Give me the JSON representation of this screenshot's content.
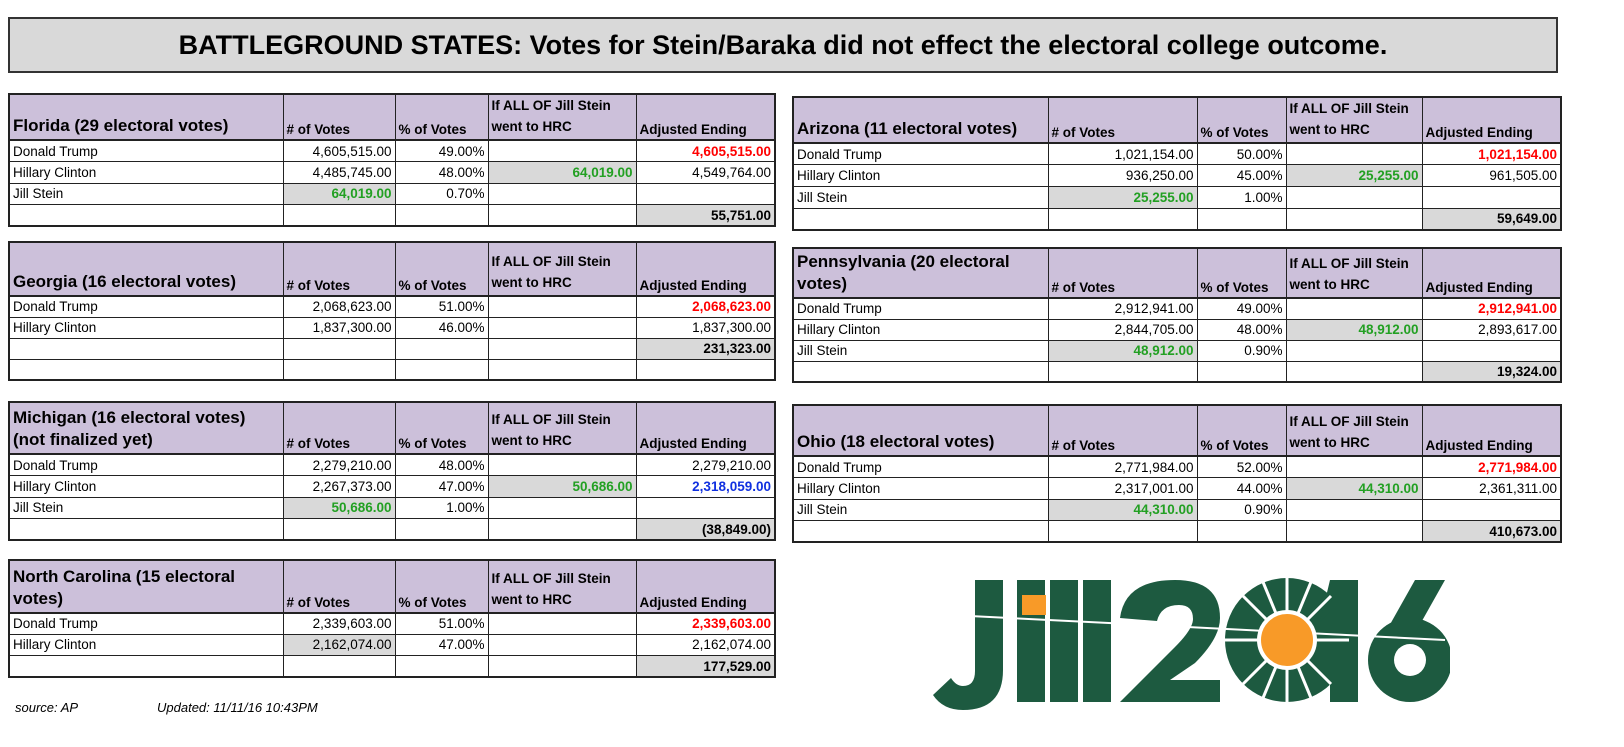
{
  "title": "BATTLEGROUND STATES: Votes for Stein/Baraka did not effect the electoral college outcome.",
  "headers": {
    "votes": "# of Votes",
    "pct": "% of Votes",
    "if": "If ALL OF Jill Stein went to HRC",
    "adjusted": "Adjusted Ending"
  },
  "colors": {
    "header": "#ccc0da",
    "shade": "#d9d9d9",
    "red": "#ff0000",
    "green": "#22a022",
    "blue": "#1030e0"
  },
  "tables": [
    {
      "id": "florida",
      "state": "Florida (29 electoral votes)",
      "rows": [
        [
          {
            "t": "Donald Trump"
          },
          {
            "t": "4,605,515.00"
          },
          {
            "t": "49.00%"
          },
          {
            "t": ""
          },
          {
            "t": "4,605,515.00",
            "c": "red",
            "b": 1
          }
        ],
        [
          {
            "t": "Hillary Clinton"
          },
          {
            "t": "4,485,745.00"
          },
          {
            "t": "48.00%"
          },
          {
            "t": "64,019.00",
            "c": "green",
            "b": 1,
            "s": 1
          },
          {
            "t": "4,549,764.00"
          }
        ],
        [
          {
            "t": "Jill Stein"
          },
          {
            "t": "64,019.00",
            "c": "green",
            "b": 1,
            "s": 1
          },
          {
            "t": "0.70%"
          },
          {
            "t": ""
          },
          {
            "t": ""
          }
        ],
        [
          {
            "t": ""
          },
          {
            "t": ""
          },
          {
            "t": ""
          },
          {
            "t": ""
          },
          {
            "t": "55,751.00",
            "b": 1,
            "s": 1
          }
        ]
      ]
    },
    {
      "id": "georgia",
      "state": "Georgia (16 electoral votes)",
      "rows": [
        [
          {
            "t": "Donald Trump"
          },
          {
            "t": "2,068,623.00"
          },
          {
            "t": "51.00%"
          },
          {
            "t": ""
          },
          {
            "t": "2,068,623.00",
            "c": "red",
            "b": 1
          }
        ],
        [
          {
            "t": "Hillary Clinton"
          },
          {
            "t": "1,837,300.00"
          },
          {
            "t": "46.00%"
          },
          {
            "t": ""
          },
          {
            "t": "1,837,300.00"
          }
        ],
        [
          {
            "t": ""
          },
          {
            "t": ""
          },
          {
            "t": ""
          },
          {
            "t": ""
          },
          {
            "t": "231,323.00",
            "b": 1,
            "s": 1
          }
        ],
        [
          {
            "t": ""
          },
          {
            "t": ""
          },
          {
            "t": ""
          },
          {
            "t": ""
          },
          {
            "t": ""
          }
        ]
      ]
    },
    {
      "id": "michigan",
      "state": "Michigan (16 electoral votes) (not finalized yet)",
      "rows": [
        [
          {
            "t": "Donald Trump"
          },
          {
            "t": "2,279,210.00"
          },
          {
            "t": "48.00%"
          },
          {
            "t": ""
          },
          {
            "t": "2,279,210.00"
          }
        ],
        [
          {
            "t": "Hillary Clinton"
          },
          {
            "t": "2,267,373.00"
          },
          {
            "t": "47.00%"
          },
          {
            "t": "50,686.00",
            "c": "green",
            "b": 1,
            "s": 1
          },
          {
            "t": "2,318,059.00",
            "c": "blue",
            "b": 1
          }
        ],
        [
          {
            "t": "Jill Stein"
          },
          {
            "t": "50,686.00",
            "c": "green",
            "b": 1,
            "s": 1
          },
          {
            "t": "1.00%"
          },
          {
            "t": ""
          },
          {
            "t": ""
          }
        ],
        [
          {
            "t": ""
          },
          {
            "t": ""
          },
          {
            "t": ""
          },
          {
            "t": ""
          },
          {
            "t": "(38,849.00)",
            "b": 1,
            "s": 1
          }
        ]
      ]
    },
    {
      "id": "north-carolina",
      "state": "North Carolina (15 electoral votes)",
      "rows": [
        [
          {
            "t": "Donald Trump"
          },
          {
            "t": "2,339,603.00"
          },
          {
            "t": "51.00%"
          },
          {
            "t": ""
          },
          {
            "t": "2,339,603.00",
            "c": "red",
            "b": 1
          }
        ],
        [
          {
            "t": "Hillary Clinton"
          },
          {
            "t": "2,162,074.00",
            "s": 1
          },
          {
            "t": "47.00%"
          },
          {
            "t": ""
          },
          {
            "t": "2,162,074.00"
          }
        ],
        [
          {
            "t": ""
          },
          {
            "t": ""
          },
          {
            "t": ""
          },
          {
            "t": ""
          },
          {
            "t": "177,529.00",
            "b": 1,
            "s": 1
          }
        ]
      ]
    },
    {
      "id": "arizona",
      "state": "Arizona (11 electoral votes)",
      "rows": [
        [
          {
            "t": "Donald Trump"
          },
          {
            "t": "1,021,154.00"
          },
          {
            "t": "50.00%"
          },
          {
            "t": ""
          },
          {
            "t": "1,021,154.00",
            "c": "red",
            "b": 1
          }
        ],
        [
          {
            "t": "Hillary Clinton"
          },
          {
            "t": "936,250.00"
          },
          {
            "t": "45.00%"
          },
          {
            "t": "25,255.00",
            "c": "green",
            "b": 1,
            "s": 1
          },
          {
            "t": "961,505.00"
          }
        ],
        [
          {
            "t": "Jill Stein"
          },
          {
            "t": "25,255.00",
            "c": "green",
            "b": 1,
            "s": 1
          },
          {
            "t": "1.00%"
          },
          {
            "t": ""
          },
          {
            "t": ""
          }
        ],
        [
          {
            "t": ""
          },
          {
            "t": ""
          },
          {
            "t": ""
          },
          {
            "t": ""
          },
          {
            "t": "59,649.00",
            "b": 1,
            "s": 1
          }
        ]
      ]
    },
    {
      "id": "pennsylvania",
      "state": "Pennsylvania (20 electoral votes)",
      "rows": [
        [
          {
            "t": "Donald Trump"
          },
          {
            "t": "2,912,941.00"
          },
          {
            "t": "49.00%"
          },
          {
            "t": ""
          },
          {
            "t": "2,912,941.00",
            "c": "red",
            "b": 1
          }
        ],
        [
          {
            "t": "Hillary Clinton"
          },
          {
            "t": "2,844,705.00"
          },
          {
            "t": "48.00%"
          },
          {
            "t": "48,912.00",
            "c": "green",
            "b": 1,
            "s": 1
          },
          {
            "t": "2,893,617.00"
          }
        ],
        [
          {
            "t": "Jill Stein"
          },
          {
            "t": "48,912.00",
            "c": "green",
            "b": 1,
            "s": 1
          },
          {
            "t": "0.90%"
          },
          {
            "t": ""
          },
          {
            "t": ""
          }
        ],
        [
          {
            "t": ""
          },
          {
            "t": ""
          },
          {
            "t": ""
          },
          {
            "t": ""
          },
          {
            "t": "19,324.00",
            "b": 1,
            "s": 1
          }
        ]
      ]
    },
    {
      "id": "ohio",
      "state": "Ohio (18 electoral votes)",
      "rows": [
        [
          {
            "t": "Donald Trump"
          },
          {
            "t": "2,771,984.00"
          },
          {
            "t": "52.00%"
          },
          {
            "t": ""
          },
          {
            "t": "2,771,984.00",
            "c": "red",
            "b": 1
          }
        ],
        [
          {
            "t": "Hillary Clinton"
          },
          {
            "t": "2,317,001.00"
          },
          {
            "t": "44.00%"
          },
          {
            "t": "44,310.00",
            "c": "green",
            "b": 1,
            "s": 1
          },
          {
            "t": "2,361,311.00"
          }
        ],
        [
          {
            "t": "Jill Stein"
          },
          {
            "t": "44,310.00",
            "c": "green",
            "b": 1,
            "s": 1
          },
          {
            "t": "0.90%"
          },
          {
            "t": ""
          },
          {
            "t": ""
          }
        ],
        [
          {
            "t": ""
          },
          {
            "t": ""
          },
          {
            "t": ""
          },
          {
            "t": ""
          },
          {
            "t": "410,673.00",
            "b": 1,
            "s": 1
          }
        ]
      ]
    }
  ],
  "footer": {
    "source": "source: AP",
    "updated": "Updated: 11/11/16 10:43PM"
  },
  "logo": {
    "text": "Jill2016"
  }
}
